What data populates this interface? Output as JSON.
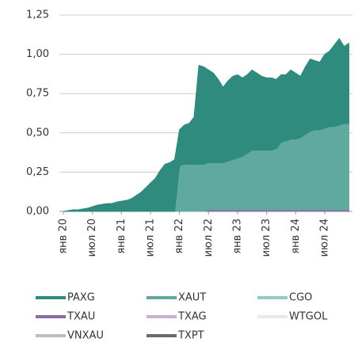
{
  "chart_data": {
    "type": "stacked_area",
    "categories": [
      "янв 20",
      null,
      null,
      null,
      null,
      null,
      "июл 20",
      null,
      null,
      null,
      null,
      null,
      "янв 21",
      null,
      null,
      null,
      null,
      null,
      "июл 21",
      null,
      null,
      null,
      null,
      null,
      "янв 22",
      null,
      null,
      null,
      null,
      null,
      "июл 22",
      null,
      null,
      null,
      null,
      null,
      "янв 23",
      null,
      null,
      null,
      null,
      null,
      "июл 23",
      null,
      null,
      null,
      null,
      null,
      "янв 24",
      null,
      null,
      null,
      null,
      null,
      "июл 24",
      null,
      null,
      null,
      null,
      null
    ],
    "series": [
      {
        "name": "PAXG",
        "color": "#2e8b7d",
        "values": [
          0,
          0.005,
          0.01,
          0.01,
          0.015,
          0.02,
          0.03,
          0.04,
          0.045,
          0.05,
          0.05,
          0.06,
          0.065,
          0.07,
          0.08,
          0.1,
          0.12,
          0.15,
          0.18,
          0.21,
          0.26,
          0.3,
          0.31,
          0.33,
          0.23,
          0.25,
          0.26,
          0.3,
          0.63,
          0.62,
          0.59,
          0.57,
          0.53,
          0.48,
          0.51,
          0.53,
          0.53,
          0.5,
          0.5,
          0.51,
          0.49,
          0.47,
          0.46,
          0.46,
          0.44,
          0.43,
          0.42,
          0.44,
          0.42,
          0.39,
          0.43,
          0.46,
          0.44,
          0.43,
          0.47,
          0.48,
          0.52,
          0.55,
          0.49,
          0.51
        ]
      },
      {
        "name": "XAUT",
        "color": "#5fa99f",
        "values": [
          0,
          0,
          0,
          0,
          0,
          0,
          0,
          0,
          0,
          0,
          0,
          0,
          0,
          0,
          0,
          0,
          0,
          0,
          0,
          0,
          0,
          0,
          0,
          0,
          0.29,
          0.3,
          0.3,
          0.3,
          0.3,
          0.3,
          0.3,
          0.3,
          0.3,
          0.3,
          0.31,
          0.32,
          0.33,
          0.34,
          0.36,
          0.38,
          0.38,
          0.38,
          0.38,
          0.38,
          0.39,
          0.43,
          0.44,
          0.45,
          0.45,
          0.46,
          0.48,
          0.5,
          0.51,
          0.51,
          0.52,
          0.53,
          0.53,
          0.54,
          0.55,
          0.55
        ]
      },
      {
        "name": "CGO",
        "color": "#93cbc2",
        "values": [
          0,
          0,
          0,
          0,
          0,
          0,
          0,
          0,
          0,
          0,
          0,
          0,
          0,
          0,
          0,
          0,
          0,
          0,
          0,
          0,
          0,
          0,
          0,
          0,
          0,
          0,
          0,
          0,
          0,
          0,
          0,
          0,
          0,
          0,
          0,
          0,
          0,
          0,
          0,
          0,
          0,
          0,
          0,
          0,
          0,
          0,
          0,
          0,
          0,
          0,
          0,
          0,
          0,
          0,
          0,
          0,
          0,
          0,
          0,
          0
        ]
      },
      {
        "name": "TXAU",
        "color": "#8e6aa4",
        "values": [
          0,
          0,
          0,
          0,
          0,
          0,
          0,
          0,
          0,
          0,
          0,
          0,
          0,
          0,
          0,
          0,
          0,
          0,
          0,
          0,
          0,
          0,
          0,
          0,
          0,
          0,
          0,
          0,
          0,
          0,
          0.01,
          0.01,
          0.01,
          0.01,
          0.01,
          0.01,
          0.01,
          0.01,
          0.01,
          0.01,
          0.01,
          0.01,
          0.01,
          0.01,
          0.01,
          0.01,
          0.01,
          0.01,
          0.01,
          0.01,
          0.01,
          0.01,
          0.01,
          0.01,
          0.01,
          0.01,
          0.01,
          0.01,
          0.01,
          0.01
        ]
      },
      {
        "name": "TXAG",
        "color": "#c9afd3",
        "values": [
          0,
          0,
          0,
          0,
          0,
          0,
          0,
          0,
          0,
          0,
          0,
          0,
          0,
          0,
          0,
          0,
          0,
          0,
          0,
          0,
          0,
          0,
          0,
          0,
          0,
          0,
          0,
          0,
          0,
          0,
          0,
          0,
          0,
          0,
          0,
          0,
          0,
          0,
          0,
          0,
          0,
          0,
          0,
          0,
          0,
          0,
          0,
          0,
          0,
          0,
          0,
          0,
          0,
          0,
          0,
          0,
          0,
          0,
          0,
          0
        ]
      },
      {
        "name": "WTGOL",
        "color": "#ece6ee",
        "values": [
          0,
          0,
          0,
          0,
          0,
          0,
          0,
          0,
          0,
          0,
          0,
          0,
          0,
          0,
          0,
          0,
          0,
          0,
          0,
          0,
          0,
          0,
          0,
          0,
          0,
          0,
          0,
          0,
          0,
          0,
          0,
          0,
          0,
          0,
          0,
          0,
          0,
          0,
          0,
          0,
          0,
          0,
          0,
          0,
          0,
          0,
          0,
          0,
          0,
          0,
          0,
          0,
          0,
          0,
          0,
          0,
          0,
          0,
          0,
          0
        ]
      },
      {
        "name": "VNXAU",
        "color": "#bdbdbd",
        "values": [
          0,
          0,
          0,
          0,
          0,
          0,
          0,
          0,
          0,
          0,
          0,
          0,
          0,
          0,
          0,
          0,
          0,
          0,
          0,
          0,
          0,
          0,
          0,
          0,
          0,
          0,
          0,
          0,
          0,
          0,
          0,
          0,
          0,
          0,
          0,
          0,
          0,
          0,
          0,
          0,
          0,
          0,
          0,
          0,
          0,
          0,
          0,
          0,
          0,
          0,
          0,
          0,
          0,
          0,
          0,
          0,
          0,
          0,
          0,
          0
        ]
      },
      {
        "name": "TXPT",
        "color": "#6b6b6b",
        "values": [
          0,
          0,
          0,
          0,
          0,
          0,
          0,
          0,
          0,
          0,
          0,
          0,
          0,
          0,
          0,
          0,
          0,
          0,
          0,
          0,
          0,
          0,
          0,
          0,
          0,
          0,
          0,
          0,
          0,
          0,
          0,
          0,
          0,
          0,
          0,
          0,
          0,
          0,
          0,
          0,
          0,
          0,
          0,
          0,
          0,
          0,
          0,
          0,
          0,
          0,
          0,
          0,
          0,
          0,
          0,
          0,
          0,
          0,
          0,
          0
        ]
      }
    ],
    "ylim": [
      0,
      1.25
    ],
    "yticks": [
      {
        "value": 0,
        "label": "0,00"
      },
      {
        "value": 0.25,
        "label": "0,25"
      },
      {
        "value": 0.5,
        "label": "0,50"
      },
      {
        "value": 0.75,
        "label": "0,75"
      },
      {
        "value": 1,
        "label": "1,00"
      },
      {
        "value": 1.25,
        "label": "1,25"
      }
    ],
    "grid": true,
    "legend": "bottom"
  }
}
